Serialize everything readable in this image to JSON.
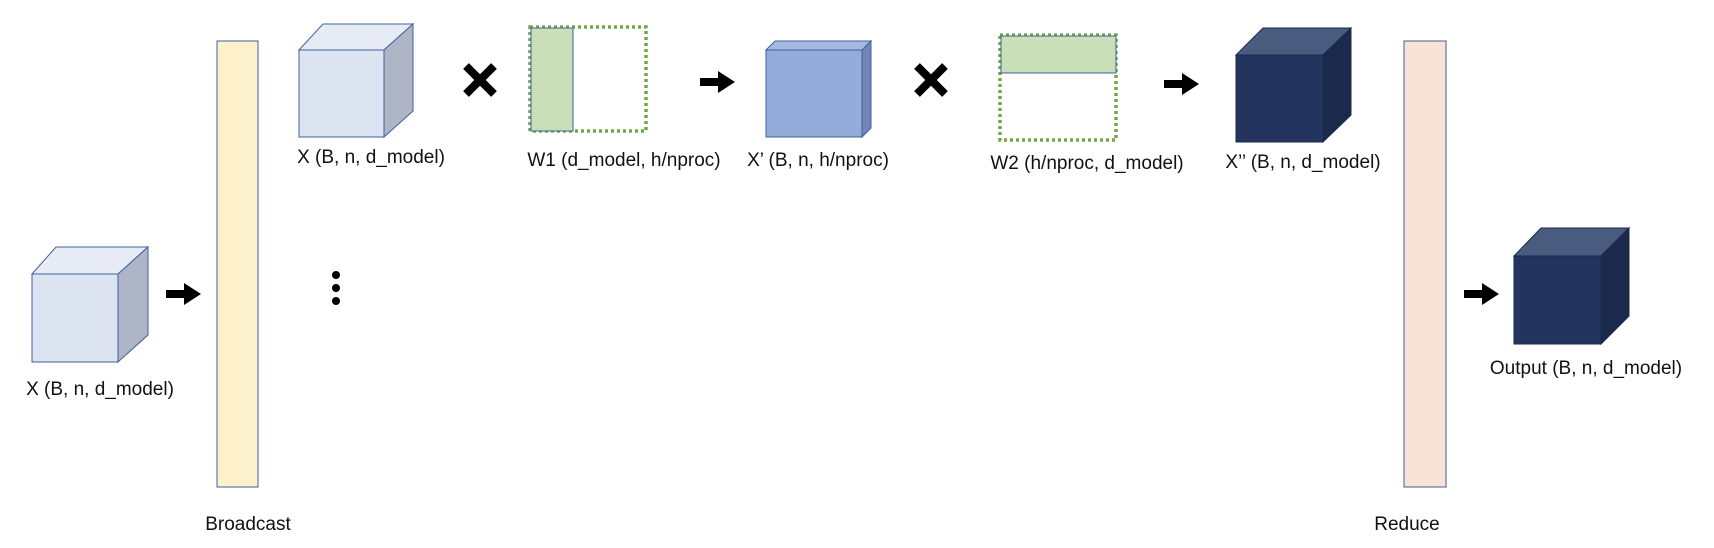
{
  "labels": {
    "input": "X (B, n, d_model)",
    "x_copy": "X (B, n, d_model)",
    "w1": "W1 (d_model, h/nproc)",
    "x_prime": "X’ (B, n, h/nproc)",
    "w2": "W2 (h/nproc, d_model)",
    "x_double_prime": "X’’ (B, n, d_model)",
    "output": "Output (B, n, d_model)",
    "broadcast": "Broadcast",
    "reduce": "Reduce"
  },
  "colors": {
    "light_cube_front": "#dce3f1",
    "light_cube_top": "#e6ebf6",
    "light_cube_side": "#adb5c6",
    "light_cube_stroke": "#3f5f9f",
    "mid_cube_front": "#94acd9",
    "mid_cube_top": "#a5b9e0",
    "mid_cube_side": "#7286b8",
    "dark_cube_front": "#23355f",
    "dark_cube_top": "#4a5b80",
    "dark_cube_side": "#1b2a4c",
    "weight_fill": "#c9dfb7",
    "weight_dash": "#70a845",
    "broadcast_bar": "#fdf1cc",
    "reduce_bar": "#f8e3d6",
    "bar_stroke": "#3f5f9f",
    "symbol": "#000000"
  }
}
